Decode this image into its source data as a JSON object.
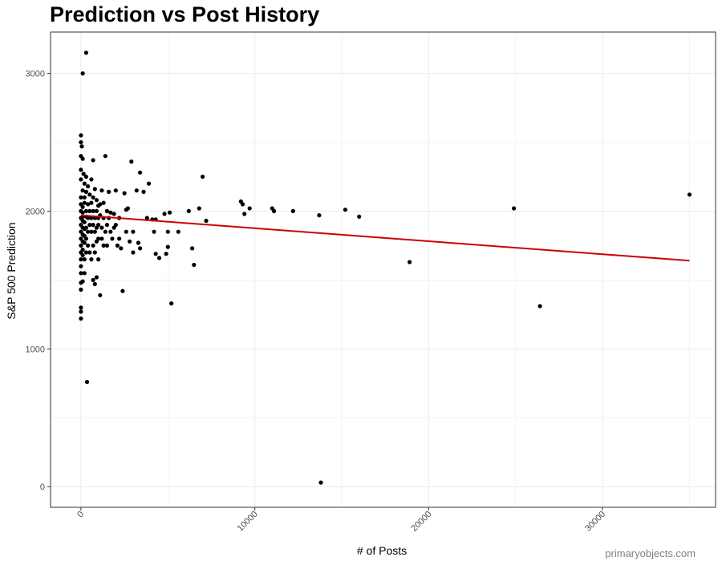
{
  "chart_data": {
    "type": "scatter",
    "title": "Prediction vs Post History",
    "xlabel": "# of Posts",
    "ylabel": "S&P 500 Prediction",
    "xlim": [
      -1750,
      36500
    ],
    "ylim": [
      -150,
      3300
    ],
    "x_ticks": [
      0,
      10000,
      20000,
      30000
    ],
    "x_tick_labels": [
      "0",
      "10000",
      "20000",
      "30000"
    ],
    "y_ticks": [
      0,
      1000,
      2000,
      3000
    ],
    "y_tick_labels": [
      "0",
      "1000",
      "2000",
      "3000"
    ],
    "grid": true,
    "legend": "none",
    "point_color": "#000000",
    "trend_color": "#cc0000",
    "trend_line": {
      "type": "linear",
      "x": [
        0,
        35000
      ],
      "y": [
        1970,
        1640
      ]
    },
    "points": [
      [
        300,
        3150
      ],
      [
        100,
        3000
      ],
      [
        0,
        2550
      ],
      [
        0,
        2500
      ],
      [
        50,
        2470
      ],
      [
        0,
        2400
      ],
      [
        100,
        2380
      ],
      [
        700,
        2370
      ],
      [
        1400,
        2400
      ],
      [
        2900,
        2360
      ],
      [
        3400,
        2280
      ],
      [
        0,
        2300
      ],
      [
        150,
        2270
      ],
      [
        300,
        2250
      ],
      [
        600,
        2230
      ],
      [
        3900,
        2200
      ],
      [
        7000,
        2250
      ],
      [
        0,
        2230
      ],
      [
        200,
        2200
      ],
      [
        400,
        2180
      ],
      [
        800,
        2160
      ],
      [
        1200,
        2150
      ],
      [
        1600,
        2140
      ],
      [
        2000,
        2150
      ],
      [
        2500,
        2130
      ],
      [
        3200,
        2150
      ],
      [
        3600,
        2140
      ],
      [
        9200,
        2070
      ],
      [
        9300,
        2050
      ],
      [
        9700,
        2020
      ],
      [
        11000,
        2020
      ],
      [
        11100,
        2000
      ],
      [
        12200,
        2000
      ],
      [
        13700,
        1970
      ],
      [
        15200,
        2010
      ],
      [
        16000,
        1960
      ],
      [
        24900,
        2020
      ],
      [
        35000,
        2120
      ],
      [
        9400,
        1980
      ],
      [
        7200,
        1930
      ],
      [
        6200,
        2000
      ],
      [
        6800,
        2020
      ],
      [
        5600,
        1850
      ],
      [
        5100,
        1990
      ],
      [
        4800,
        1980
      ],
      [
        3800,
        1950
      ],
      [
        4100,
        1940
      ],
      [
        4300,
        1940
      ],
      [
        2600,
        2010
      ],
      [
        2700,
        2020
      ],
      [
        2200,
        1950
      ],
      [
        1900,
        1980
      ],
      [
        1700,
        1990
      ],
      [
        1500,
        2000
      ],
      [
        1300,
        2060
      ],
      [
        1000,
        2040
      ],
      [
        900,
        2080
      ],
      [
        700,
        2100
      ],
      [
        500,
        2120
      ],
      [
        300,
        2140
      ],
      [
        100,
        2150
      ],
      [
        0,
        2100
      ],
      [
        0,
        2050
      ],
      [
        0,
        2000
      ],
      [
        0,
        1950
      ],
      [
        0,
        1900
      ],
      [
        0,
        1850
      ],
      [
        0,
        1800
      ],
      [
        0,
        1750
      ],
      [
        0,
        1700
      ],
      [
        0,
        1650
      ],
      [
        0,
        1600
      ],
      [
        0,
        1550
      ],
      [
        0,
        1480
      ],
      [
        0,
        1430
      ],
      [
        0,
        1300
      ],
      [
        0,
        1270
      ],
      [
        0,
        1220
      ],
      [
        100,
        2030
      ],
      [
        100,
        1990
      ],
      [
        100,
        1960
      ],
      [
        100,
        1930
      ],
      [
        100,
        1880
      ],
      [
        100,
        1830
      ],
      [
        100,
        1780
      ],
      [
        100,
        1720
      ],
      [
        100,
        1680
      ],
      [
        100,
        1490
      ],
      [
        200,
        2100
      ],
      [
        200,
        2060
      ],
      [
        200,
        1920
      ],
      [
        200,
        1870
      ],
      [
        200,
        1820
      ],
      [
        200,
        1770
      ],
      [
        200,
        1650
      ],
      [
        200,
        1550
      ],
      [
        300,
        2000
      ],
      [
        300,
        1960
      ],
      [
        300,
        1880
      ],
      [
        300,
        1800
      ],
      [
        300,
        1700
      ],
      [
        400,
        2050
      ],
      [
        400,
        1950
      ],
      [
        400,
        1850
      ],
      [
        400,
        1750
      ],
      [
        500,
        2000
      ],
      [
        500,
        1900
      ],
      [
        500,
        1700
      ],
      [
        600,
        2060
      ],
      [
        600,
        1950
      ],
      [
        600,
        1850
      ],
      [
        600,
        1650
      ],
      [
        700,
        2000
      ],
      [
        700,
        1900
      ],
      [
        700,
        1750
      ],
      [
        700,
        1500
      ],
      [
        800,
        1950
      ],
      [
        800,
        1850
      ],
      [
        800,
        1700
      ],
      [
        800,
        1470
      ],
      [
        900,
        2000
      ],
      [
        900,
        1880
      ],
      [
        900,
        1780
      ],
      [
        900,
        1520
      ],
      [
        1000,
        1950
      ],
      [
        1000,
        1900
      ],
      [
        1000,
        1800
      ],
      [
        1000,
        1650
      ],
      [
        1100,
        2050
      ],
      [
        1100,
        1970
      ],
      [
        1100,
        1390
      ],
      [
        1200,
        1880
      ],
      [
        1200,
        1800
      ],
      [
        1300,
        1950
      ],
      [
        1300,
        1750
      ],
      [
        1400,
        1850
      ],
      [
        1500,
        1900
      ],
      [
        1500,
        1750
      ],
      [
        1600,
        1950
      ],
      [
        1700,
        1850
      ],
      [
        1800,
        1800
      ],
      [
        1900,
        1880
      ],
      [
        2000,
        1900
      ],
      [
        2100,
        1750
      ],
      [
        2200,
        1800
      ],
      [
        2300,
        1730
      ],
      [
        2400,
        1420
      ],
      [
        2600,
        1850
      ],
      [
        2800,
        1780
      ],
      [
        3000,
        1850
      ],
      [
        3000,
        1700
      ],
      [
        3300,
        1770
      ],
      [
        3400,
        1730
      ],
      [
        4200,
        1850
      ],
      [
        4300,
        1690
      ],
      [
        4500,
        1660
      ],
      [
        4900,
        1690
      ],
      [
        5000,
        1850
      ],
      [
        5000,
        1740
      ],
      [
        5200,
        1330
      ],
      [
        6400,
        1730
      ],
      [
        6500,
        1610
      ],
      [
        13800,
        30
      ],
      [
        18900,
        1630
      ],
      [
        26400,
        1310
      ],
      [
        350,
        760
      ]
    ]
  },
  "footer": {
    "watermark": "primaryobjects.com"
  }
}
